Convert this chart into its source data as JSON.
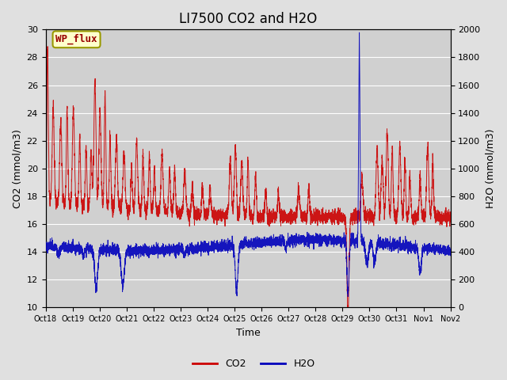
{
  "title": "LI7500 CO2 and H2O",
  "xlabel": "Time",
  "ylabel_left": "CO2 (mmol/m3)",
  "ylabel_right": "H2O (mmol/m3)",
  "ylim_left": [
    10,
    30
  ],
  "ylim_right": [
    0,
    2000
  ],
  "co2_color": "#cc0000",
  "h2o_color": "#0000bb",
  "background_color": "#e0e0e0",
  "plot_bg_color": "#d0d0d0",
  "grid_color": "#ffffff",
  "annotation_text": "WP_flux",
  "annotation_bg": "#ffffcc",
  "annotation_border": "#999900",
  "title_fontsize": 12,
  "tick_fontsize": 8,
  "label_fontsize": 9,
  "legend_fontsize": 9,
  "xtick_labels": [
    "Oct 18",
    "Oct 19",
    "Oct 20",
    "Oct 21",
    "Oct 22",
    "Oct 23",
    "Oct 24",
    "Oct 25",
    "Oct 26",
    "Oct 27",
    "Oct 28",
    "Oct 29",
    "Oct 30",
    "Oct 31",
    "Nov 1",
    "Nov 2"
  ],
  "yticks_left": [
    10,
    12,
    14,
    16,
    18,
    20,
    22,
    24,
    26,
    28,
    30
  ],
  "yticks_right": [
    0,
    200,
    400,
    600,
    800,
    1000,
    1200,
    1400,
    1600,
    1800,
    2000
  ]
}
